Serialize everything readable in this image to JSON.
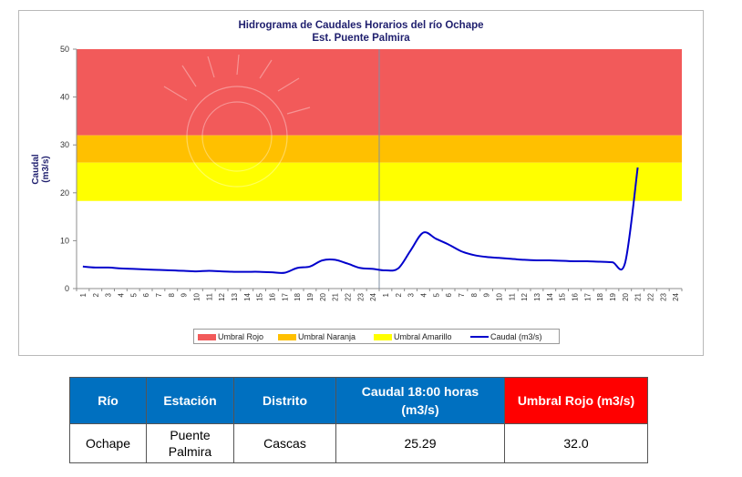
{
  "chart_data": {
    "type": "line",
    "title": "Hidrograma de Caudales Horarios del río Ochape",
    "subtitle": "Est. Puente Palmira",
    "ylabel": "Caudal  (m3/s)",
    "xlabel": "",
    "ylim": [
      0,
      50
    ],
    "yticks": [
      "0",
      "10",
      "20",
      "30",
      "40",
      "50"
    ],
    "x_tick_labels": [
      "1",
      "2",
      "3",
      "4",
      "5",
      "6",
      "7",
      "8",
      "9",
      "10",
      "11",
      "12",
      "13",
      "14",
      "15",
      "16",
      "17",
      "18",
      "19",
      "20",
      "21",
      "22",
      "23",
      "24",
      "1",
      "2",
      "3",
      "4",
      "5",
      "6",
      "7",
      "8",
      "9",
      "10",
      "11",
      "12",
      "13",
      "14",
      "15",
      "16",
      "17",
      "18",
      "19",
      "20",
      "21",
      "22",
      "23",
      "24"
    ],
    "bands": [
      {
        "name": "Umbral Rojo",
        "from": 32,
        "to": 50,
        "color": "#f25a5a"
      },
      {
        "name": "Umbral Naranja",
        "from": 26.3,
        "to": 32,
        "color": "#ffc000"
      },
      {
        "name": "Umbral Amarillo",
        "from": 18.3,
        "to": 26.3,
        "color": "#ffff00"
      }
    ],
    "series": [
      {
        "name": "Caudal (m3/s)",
        "color": "#0000cc",
        "values": [
          4.6,
          4.4,
          4.4,
          4.2,
          4.1,
          4.0,
          3.9,
          3.8,
          3.7,
          3.6,
          3.7,
          3.6,
          3.5,
          3.5,
          3.5,
          3.4,
          3.3,
          4.3,
          4.6,
          5.9,
          6.0,
          5.2,
          4.3,
          4.1,
          3.8,
          4.2,
          8.0,
          11.7,
          10.4,
          9.2,
          7.8,
          7.0,
          6.6,
          6.4,
          6.2,
          6.0,
          5.9,
          5.9,
          5.8,
          5.7,
          5.7,
          5.6,
          5.5,
          5.4,
          25.29
        ]
      }
    ],
    "legend": [
      "Umbral Rojo",
      "Umbral Naranja",
      "Umbral Amarillo",
      "Caudal (m3/s)"
    ],
    "legend_position": "bottom",
    "grid": false
  },
  "table": {
    "headers": [
      "Río",
      "Estación",
      "Distrito",
      "Caudal  18:00 horas (m3/s)",
      "Umbral Rojo (m3/s)"
    ],
    "row": [
      "Ochape",
      "Puente Palmira",
      "Cascas",
      "25.29",
      "32.0"
    ]
  }
}
